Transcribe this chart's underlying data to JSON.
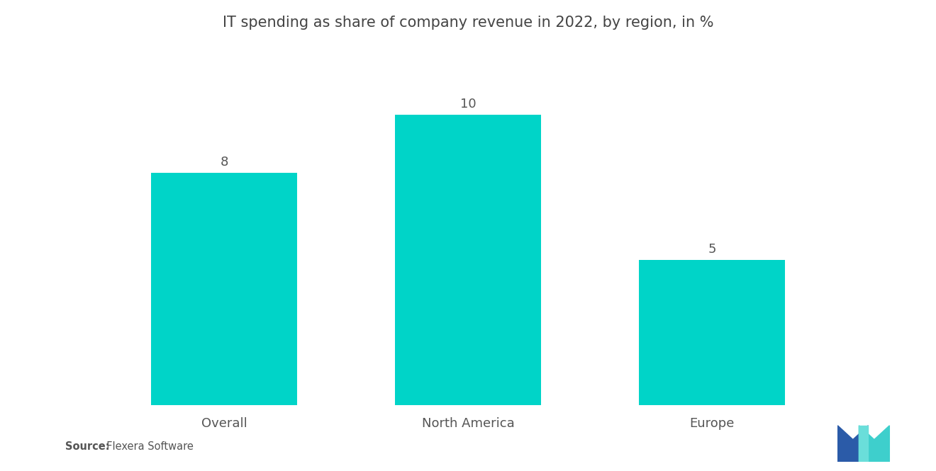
{
  "title": "IT spending as share of company revenue in 2022, by region, in %",
  "categories": [
    "Overall",
    "North America",
    "Europe"
  ],
  "values": [
    8,
    10,
    5
  ],
  "bar_color": "#00D4C8",
  "background_color": "#ffffff",
  "title_fontsize": 15,
  "label_fontsize": 13,
  "value_fontsize": 13,
  "source_bold": "Source:",
  "source_rest": "  Flexera Software",
  "ylim": [
    0,
    12
  ],
  "bar_width": 0.6
}
